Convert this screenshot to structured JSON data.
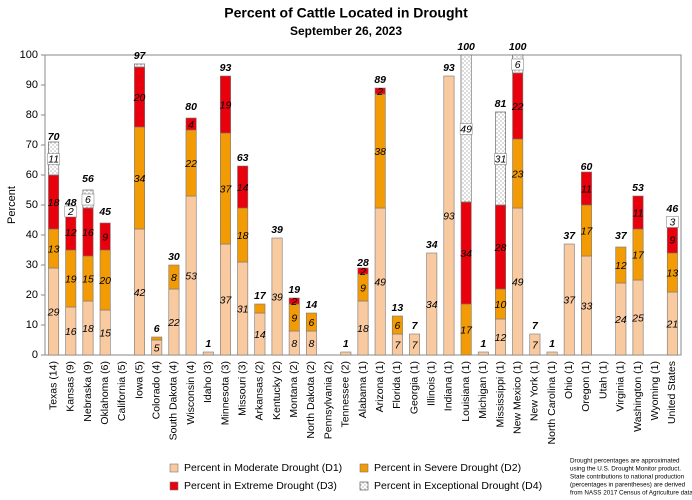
{
  "chart_data": {
    "type": "stacked-bar",
    "title": "Percent of Cattle Located in Drought",
    "subtitle": "September 26, 2023",
    "y_label": "Percent",
    "categories": [
      "Texas (14)",
      "Kansas (9)",
      "Nebraska (9)",
      "Oklahoma (6)",
      "California (5)",
      "Iowa (5)",
      "Colorado (4)",
      "South Dakota (4)",
      "Wisconsin (4)",
      "Idaho (3)",
      "Minnesota (3)",
      "Missouri (3)",
      "Arkansas (2)",
      "Kentucky (2)",
      "Montana (2)",
      "North Dakota (2)",
      "Pennsylvania (2)",
      "Tennessee (2)",
      "Alabama (1)",
      "Arizona (1)",
      "Florida (1)",
      "Georgia (1)",
      "Illinois (1)",
      "Indiana (1)",
      "Louisiana (1)",
      "Michigan (1)",
      "Mississippi (1)",
      "New Mexico (1)",
      "New York (1)",
      "North Carolina (1)",
      "Ohio (1)",
      "Oregon (1)",
      "Utah (1)",
      "Virginia (1)",
      "Washington (1)",
      "Wyoming (1)",
      "United States"
    ],
    "series": [
      {
        "name": "Percent in Moderate Drought (D1)",
        "color": "#f9c9a0",
        "values": [
          29,
          16,
          18,
          15,
          null,
          42,
          5,
          22,
          53,
          1,
          37,
          31,
          14,
          39,
          8,
          8,
          null,
          1,
          18,
          49,
          7,
          7,
          34,
          93,
          null,
          1,
          12,
          49,
          7,
          1,
          37,
          33,
          null,
          24,
          25,
          null,
          21
        ],
        "value_labels": [
          "29",
          "16",
          "18",
          "15",
          null,
          "42",
          "5",
          "22",
          "53",
          null,
          "37",
          "31",
          "14",
          "39",
          "8",
          "8",
          null,
          null,
          "18",
          "49",
          "7",
          "7",
          "34",
          "93",
          null,
          null,
          "12",
          "49",
          "7",
          null,
          "37",
          "33",
          null,
          "24",
          "25",
          null,
          "21"
        ]
      },
      {
        "name": "Percent in Severe Drought (D2)",
        "color": "#f29b05",
        "values": [
          13,
          19,
          15,
          20,
          null,
          34,
          1,
          8,
          22,
          null,
          37,
          18,
          3,
          null,
          9,
          6,
          null,
          null,
          9,
          38,
          6,
          null,
          null,
          null,
          17,
          null,
          10,
          23,
          null,
          null,
          null,
          17,
          null,
          12,
          17,
          null,
          13
        ],
        "value_labels": [
          "13",
          "19",
          "15",
          "20",
          null,
          "34",
          null,
          "8",
          "22",
          null,
          "37",
          "18",
          null,
          null,
          "9",
          "6",
          null,
          null,
          "9",
          "38",
          "6",
          null,
          null,
          null,
          "17",
          null,
          "10",
          "23",
          null,
          null,
          null,
          "17",
          null,
          "12",
          "17",
          null,
          "13"
        ]
      },
      {
        "name": "Percent in Extreme Drought (D3)",
        "color": "#e8000c",
        "values": [
          18,
          12,
          16,
          9,
          null,
          20,
          null,
          null,
          4,
          null,
          19,
          14,
          null,
          null,
          2,
          null,
          null,
          null,
          2,
          2,
          null,
          null,
          null,
          null,
          34,
          null,
          28,
          22,
          null,
          null,
          null,
          11,
          null,
          null,
          11,
          null,
          9
        ],
        "value_labels": [
          "18",
          "12",
          "16",
          "9",
          null,
          "20",
          null,
          null,
          "4",
          null,
          "19",
          "14",
          null,
          null,
          "2",
          null,
          null,
          null,
          "2",
          "2",
          null,
          null,
          null,
          null,
          "34",
          null,
          "28",
          "22",
          null,
          null,
          null,
          "11",
          null,
          null,
          "11",
          null,
          "9"
        ]
      },
      {
        "name": "Percent in Exceptional Drought (D4)",
        "color": "#ffffff",
        "pattern": "dots",
        "values": [
          11,
          2,
          6,
          null,
          null,
          1,
          null,
          null,
          null,
          null,
          null,
          null,
          null,
          null,
          null,
          null,
          null,
          null,
          null,
          null,
          null,
          null,
          null,
          null,
          49,
          null,
          31,
          6,
          null,
          null,
          null,
          null,
          null,
          null,
          null,
          null,
          3
        ],
        "value_labels": [
          "11",
          "2",
          "6",
          null,
          null,
          null,
          null,
          null,
          null,
          null,
          null,
          null,
          null,
          null,
          null,
          null,
          null,
          null,
          null,
          null,
          null,
          null,
          null,
          null,
          "49",
          null,
          "31",
          "6",
          null,
          null,
          null,
          null,
          null,
          null,
          null,
          null,
          "3"
        ]
      }
    ],
    "totals": [
      70,
      48,
      56,
      45,
      null,
      97,
      6,
      30,
      80,
      1,
      93,
      63,
      17,
      39,
      19,
      14,
      null,
      1,
      28,
      89,
      13,
      7,
      34,
      93,
      100,
      1,
      81,
      100,
      7,
      1,
      37,
      60,
      null,
      37,
      53,
      null,
      46
    ],
    "ylim": [
      0,
      100
    ],
    "yticks": [
      0,
      10,
      20,
      30,
      40,
      50,
      60,
      70,
      80,
      90,
      100
    ],
    "grid": false,
    "footnote": [
      "Drought percentages are approximated",
      "using the U.S. Drought Monitor product.",
      "State contributions to national production",
      "(percentages in parentheses) are derived",
      "from NASS 2017 Census of Agriculture data."
    ]
  }
}
